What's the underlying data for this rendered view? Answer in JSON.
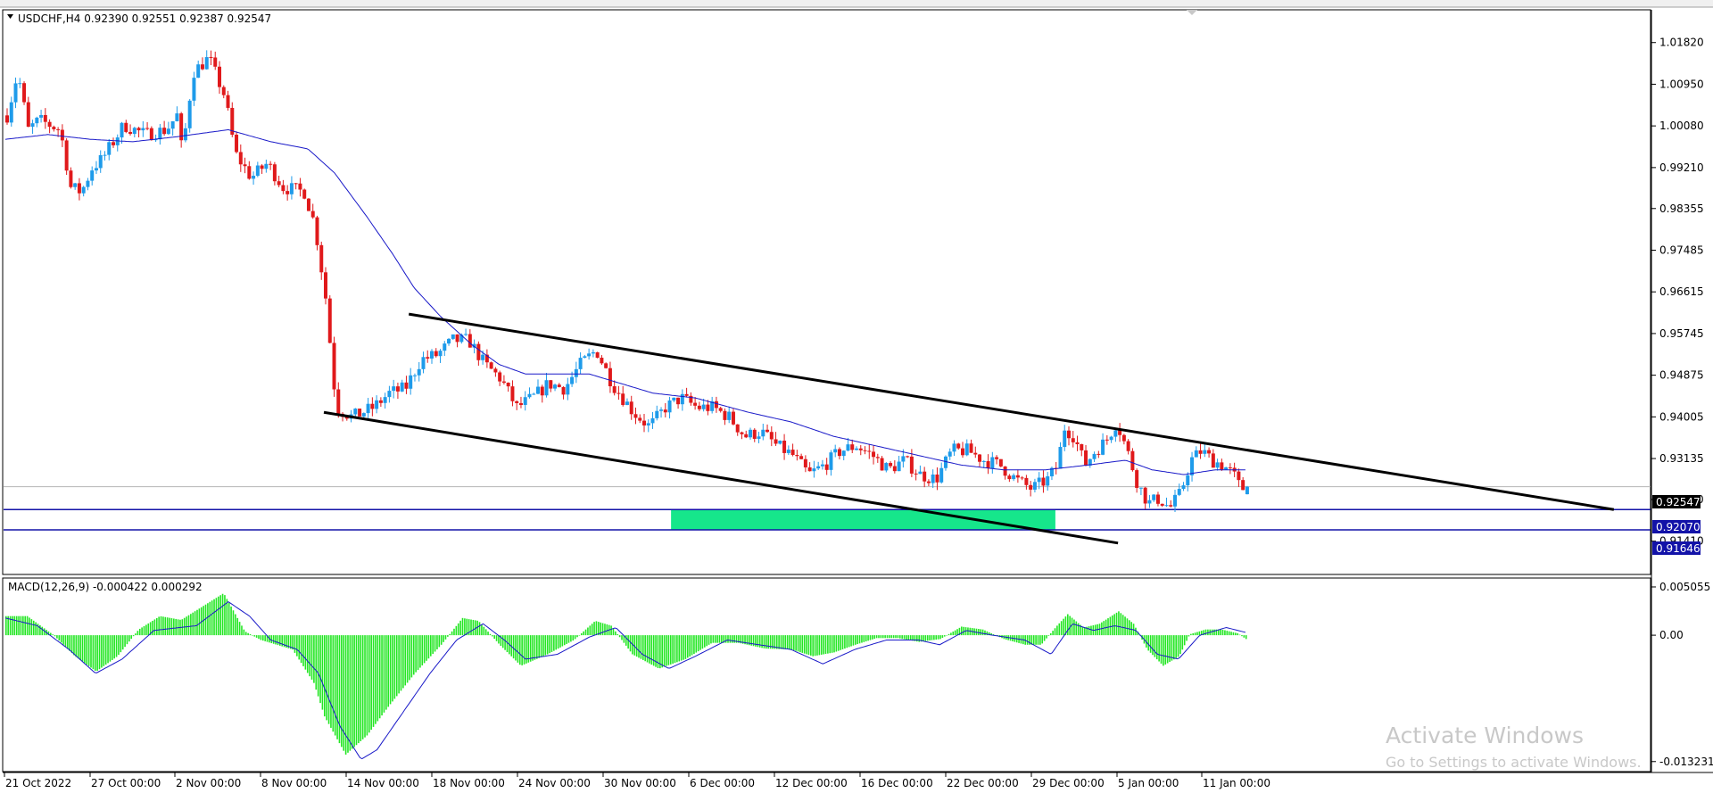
{
  "header": {
    "symbol_line": "USDCHF,H4  0.92390 0.92551 0.92387 0.92547"
  },
  "macd_header": "MACD(12,26,9) -0.000422 0.000292",
  "watermark": {
    "title": "Activate Windows",
    "subtitle": "Go to Settings to activate Windows."
  },
  "colors": {
    "bull": "#1e9bea",
    "bear": "#e0191b",
    "ma": "#1919c8",
    "hist": "#23e623",
    "zone": "#16e68b",
    "hline": "#1212a8",
    "channel": "#000000",
    "grid_axis": "#000000"
  },
  "price_axis": {
    "ticks": [
      "1.01820",
      "1.00950",
      "1.00080",
      "0.99210",
      "0.98355",
      "0.97485",
      "0.96615",
      "0.95745",
      "0.94875",
      "0.94005",
      "0.93135",
      "0.92280",
      "0.91410"
    ],
    "current_price_label": "0.92547",
    "level_upper_label": "0.92070",
    "level_lower_label": "0.91646"
  },
  "macd_axis": {
    "ticks": [
      "0.005055",
      "0.00",
      "-0.013231"
    ]
  },
  "time_axis": {
    "labels": [
      "21 Oct 2022",
      "27 Oct 00:00",
      "2 Nov 00:00",
      "8 Nov 00:00",
      "14 Nov 00:00",
      "18 Nov 00:00",
      "24 Nov 00:00",
      "30 Nov 00:00",
      "6 Dec 00:00",
      "12 Dec 00:00",
      "16 Dec 00:00",
      "22 Dec 00:00",
      "29 Dec 00:00",
      "5 Jan 00:00",
      "11 Jan 00:00"
    ]
  },
  "chart_data": {
    "type": "candlestick",
    "symbol": "USDCHF",
    "timeframe": "H4",
    "last_bar": {
      "open": 0.9239,
      "high": 0.92551,
      "low": 0.92387,
      "close": 0.92547
    },
    "ylim": [
      0.9105,
      1.0215
    ],
    "horizontal_levels": [
      0.9207,
      0.91646
    ],
    "support_zone": {
      "from": 0.91646,
      "to": 0.9207
    },
    "close_path_anchors": [
      [
        0,
        1.003
      ],
      [
        10,
        1.012
      ],
      [
        20,
        1.0
      ],
      [
        30,
        1.002
      ],
      [
        40,
        1.001
      ],
      [
        50,
        1.0
      ],
      [
        60,
        0.988
      ],
      [
        70,
        0.987
      ],
      [
        80,
        0.992
      ],
      [
        90,
        0.994
      ],
      [
        110,
        1.001
      ],
      [
        130,
        0.999
      ],
      [
        150,
        1.0
      ],
      [
        160,
        1.003
      ],
      [
        165,
        0.995
      ],
      [
        175,
        1.012
      ],
      [
        190,
        1.015
      ],
      [
        205,
        1.007
      ],
      [
        215,
        0.995
      ],
      [
        230,
        0.99
      ],
      [
        245,
        0.993
      ],
      [
        260,
        0.988
      ],
      [
        280,
        0.987
      ],
      [
        290,
        0.98
      ],
      [
        300,
        0.965
      ],
      [
        310,
        0.942
      ],
      [
        325,
        0.94
      ],
      [
        345,
        0.942
      ],
      [
        360,
        0.945
      ],
      [
        375,
        0.946
      ],
      [
        390,
        0.952
      ],
      [
        405,
        0.953
      ],
      [
        420,
        0.956
      ],
      [
        435,
        0.956
      ],
      [
        450,
        0.951
      ],
      [
        465,
        0.948
      ],
      [
        480,
        0.942
      ],
      [
        495,
        0.944
      ],
      [
        510,
        0.947
      ],
      [
        525,
        0.946
      ],
      [
        540,
        0.951
      ],
      [
        555,
        0.954
      ],
      [
        570,
        0.947
      ],
      [
        590,
        0.941
      ],
      [
        605,
        0.938
      ],
      [
        620,
        0.942
      ],
      [
        635,
        0.944
      ],
      [
        650,
        0.942
      ],
      [
        665,
        0.942
      ],
      [
        680,
        0.94
      ],
      [
        695,
        0.936
      ],
      [
        710,
        0.937
      ],
      [
        725,
        0.934
      ],
      [
        740,
        0.932
      ],
      [
        755,
        0.928
      ],
      [
        770,
        0.93
      ],
      [
        785,
        0.933
      ],
      [
        800,
        0.934
      ],
      [
        815,
        0.932
      ],
      [
        830,
        0.929
      ],
      [
        845,
        0.931
      ],
      [
        860,
        0.928
      ],
      [
        875,
        0.927
      ],
      [
        890,
        0.933
      ],
      [
        905,
        0.933
      ],
      [
        920,
        0.931
      ],
      [
        935,
        0.93
      ],
      [
        950,
        0.927
      ],
      [
        965,
        0.925
      ],
      [
        980,
        0.927
      ],
      [
        990,
        0.93
      ],
      [
        995,
        0.938
      ],
      [
        1005,
        0.936
      ],
      [
        1015,
        0.93
      ],
      [
        1025,
        0.933
      ],
      [
        1035,
        0.935
      ],
      [
        1045,
        0.939
      ],
      [
        1055,
        0.933
      ],
      [
        1065,
        0.926
      ],
      [
        1075,
        0.922
      ],
      [
        1085,
        0.923
      ],
      [
        1095,
        0.921
      ],
      [
        1105,
        0.924
      ],
      [
        1115,
        0.931
      ],
      [
        1125,
        0.933
      ],
      [
        1135,
        0.931
      ],
      [
        1145,
        0.93
      ],
      [
        1155,
        0.928
      ],
      [
        1162,
        0.925
      ],
      [
        1168,
        0.92547
      ]
    ],
    "moving_average_anchors": [
      [
        0,
        0.998
      ],
      [
        40,
        0.999
      ],
      [
        80,
        0.998
      ],
      [
        120,
        0.9975
      ],
      [
        160,
        0.9985
      ],
      [
        210,
        1.0
      ],
      [
        250,
        0.9975
      ],
      [
        285,
        0.996
      ],
      [
        310,
        0.991
      ],
      [
        340,
        0.982
      ],
      [
        365,
        0.974
      ],
      [
        385,
        0.967
      ],
      [
        410,
        0.961
      ],
      [
        440,
        0.955
      ],
      [
        465,
        0.951
      ],
      [
        490,
        0.949
      ],
      [
        520,
        0.949
      ],
      [
        550,
        0.949
      ],
      [
        580,
        0.947
      ],
      [
        610,
        0.945
      ],
      [
        650,
        0.944
      ],
      [
        700,
        0.941
      ],
      [
        740,
        0.939
      ],
      [
        780,
        0.936
      ],
      [
        820,
        0.934
      ],
      [
        860,
        0.932
      ],
      [
        900,
        0.93
      ],
      [
        940,
        0.929
      ],
      [
        980,
        0.929
      ],
      [
        1020,
        0.93
      ],
      [
        1055,
        0.931
      ],
      [
        1080,
        0.929
      ],
      [
        1110,
        0.928
      ],
      [
        1140,
        0.929
      ],
      [
        1168,
        0.929
      ]
    ],
    "channel_lines": [
      {
        "from": [
          380,
          0.9615
        ],
        "to": [
          1515,
          0.9207
        ]
      },
      {
        "from": [
          300,
          0.941
        ],
        "to": [
          1048,
          0.9137
        ]
      }
    ],
    "macd": {
      "ylim": [
        -0.014,
        0.0058
      ],
      "histogram_anchors": [
        [
          0,
          0.002
        ],
        [
          20,
          0.002
        ],
        [
          45,
          0.0
        ],
        [
          65,
          -0.0022
        ],
        [
          85,
          -0.0038
        ],
        [
          105,
          -0.0022
        ],
        [
          125,
          0.0006
        ],
        [
          145,
          0.002
        ],
        [
          165,
          0.0016
        ],
        [
          185,
          0.003
        ],
        [
          205,
          0.0044
        ],
        [
          225,
          0.0004
        ],
        [
          240,
          -0.0005
        ],
        [
          270,
          -0.0015
        ],
        [
          290,
          -0.005
        ],
        [
          300,
          -0.0085
        ],
        [
          320,
          -0.0125
        ],
        [
          340,
          -0.0105
        ],
        [
          360,
          -0.0075
        ],
        [
          385,
          -0.004
        ],
        [
          410,
          -0.001
        ],
        [
          430,
          0.0018
        ],
        [
          445,
          0.0015
        ],
        [
          465,
          -0.001
        ],
        [
          485,
          -0.0032
        ],
        [
          510,
          -0.002
        ],
        [
          535,
          -0.0005
        ],
        [
          555,
          0.0015
        ],
        [
          570,
          0.001
        ],
        [
          590,
          -0.002
        ],
        [
          615,
          -0.0035
        ],
        [
          640,
          -0.0025
        ],
        [
          665,
          -0.0008
        ],
        [
          690,
          -0.0008
        ],
        [
          715,
          -0.0014
        ],
        [
          740,
          -0.0015
        ],
        [
          760,
          -0.0022
        ],
        [
          780,
          -0.0018
        ],
        [
          800,
          -0.001
        ],
        [
          820,
          -0.0003
        ],
        [
          840,
          -0.0003
        ],
        [
          860,
          -0.0007
        ],
        [
          880,
          -0.0004
        ],
        [
          900,
          0.0009
        ],
        [
          920,
          0.0006
        ],
        [
          940,
          -0.0004
        ],
        [
          960,
          -0.001
        ],
        [
          975,
          -0.001
        ],
        [
          990,
          0.001
        ],
        [
          1000,
          0.0022
        ],
        [
          1015,
          0.0008
        ],
        [
          1030,
          0.0012
        ],
        [
          1048,
          0.0025
        ],
        [
          1062,
          0.0012
        ],
        [
          1075,
          -0.0015
        ],
        [
          1090,
          -0.0032
        ],
        [
          1105,
          -0.0022
        ],
        [
          1115,
          0.0001
        ],
        [
          1130,
          0.0006
        ],
        [
          1145,
          0.0006
        ],
        [
          1160,
          0.0002
        ],
        [
          1168,
          -0.0004
        ]
      ],
      "signal_anchors": [
        [
          0,
          0.0018
        ],
        [
          30,
          0.001
        ],
        [
          60,
          -0.0015
        ],
        [
          85,
          -0.004
        ],
        [
          110,
          -0.0025
        ],
        [
          140,
          0.0005
        ],
        [
          180,
          0.001
        ],
        [
          210,
          0.0035
        ],
        [
          230,
          0.002
        ],
        [
          250,
          -0.0005
        ],
        [
          275,
          -0.0015
        ],
        [
          295,
          -0.004
        ],
        [
          315,
          -0.0095
        ],
        [
          335,
          -0.013
        ],
        [
          350,
          -0.012
        ],
        [
          375,
          -0.008
        ],
        [
          400,
          -0.004
        ],
        [
          425,
          -0.0005
        ],
        [
          450,
          0.0012
        ],
        [
          470,
          -0.0005
        ],
        [
          490,
          -0.0025
        ],
        [
          520,
          -0.002
        ],
        [
          550,
          -0.0002
        ],
        [
          575,
          0.0008
        ],
        [
          600,
          -0.002
        ],
        [
          625,
          -0.0035
        ],
        [
          650,
          -0.0022
        ],
        [
          680,
          -0.0005
        ],
        [
          710,
          -0.001
        ],
        [
          740,
          -0.0015
        ],
        [
          770,
          -0.003
        ],
        [
          800,
          -0.0015
        ],
        [
          830,
          -0.0005
        ],
        [
          860,
          -0.0005
        ],
        [
          880,
          -0.001
        ],
        [
          905,
          0.0005
        ],
        [
          930,
          0.0
        ],
        [
          960,
          -0.0005
        ],
        [
          985,
          -0.002
        ],
        [
          1005,
          0.0012
        ],
        [
          1025,
          0.0005
        ],
        [
          1045,
          0.001
        ],
        [
          1065,
          0.0005
        ],
        [
          1085,
          -0.002
        ],
        [
          1105,
          -0.0025
        ],
        [
          1125,
          0.0
        ],
        [
          1150,
          0.0008
        ],
        [
          1168,
          0.0003
        ]
      ]
    }
  }
}
